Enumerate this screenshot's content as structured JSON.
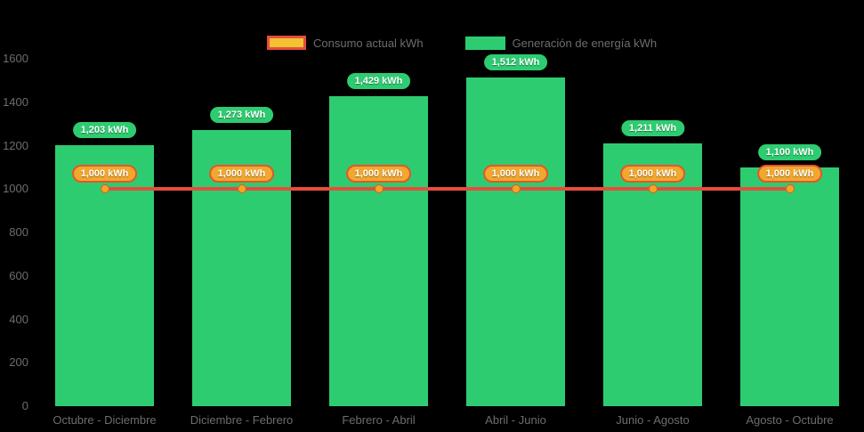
{
  "chart_data": {
    "type": "bar",
    "title": "",
    "categories": [
      "Octubre - Diciembre",
      "Diciembre - Febrero",
      "Febrero - Abril",
      "Abril - Junio",
      "Junio - Agosto",
      "Agosto - Octubre"
    ],
    "series": [
      {
        "name": "Consumo actual kWh",
        "type": "line",
        "values": [
          1000,
          1000,
          1000,
          1000,
          1000,
          1000
        ],
        "value_labels": [
          "1,000 kWh",
          "1,000 kWh",
          "1,000 kWh",
          "1,000 kWh",
          "1,000 kWh",
          "1,000 kWh"
        ],
        "line_color": "#e74c3c",
        "point_color": "#f5a623",
        "label_fill": "#f2a72e",
        "label_border": "#e2572b"
      },
      {
        "name": "Generación de energía kWh",
        "type": "bar",
        "values": [
          1203,
          1273,
          1429,
          1512,
          1211,
          1100
        ],
        "value_labels": [
          "1,203 kWh",
          "1,273 kWh",
          "1,429 kWh",
          "1,512 kWh",
          "1,211 kWh",
          "1,100 kWh"
        ],
        "bar_color": "#2ecc71"
      }
    ],
    "xlabel": "",
    "ylabel": "",
    "ylim": [
      0,
      1600
    ],
    "yticks": [
      0,
      200,
      400,
      600,
      800,
      1000,
      1200,
      1400,
      1600
    ],
    "grid": false,
    "legend_position": "top",
    "background": "#000000",
    "axis_text_color": "#6d6d6d"
  },
  "legend": {
    "items": [
      {
        "label": "Consumo actual kWh",
        "swatch_fill": "#f1c232",
        "swatch_border": "#e74c3c"
      },
      {
        "label": "Generación de energía kWh",
        "swatch_fill": "#2ecc71"
      }
    ]
  }
}
